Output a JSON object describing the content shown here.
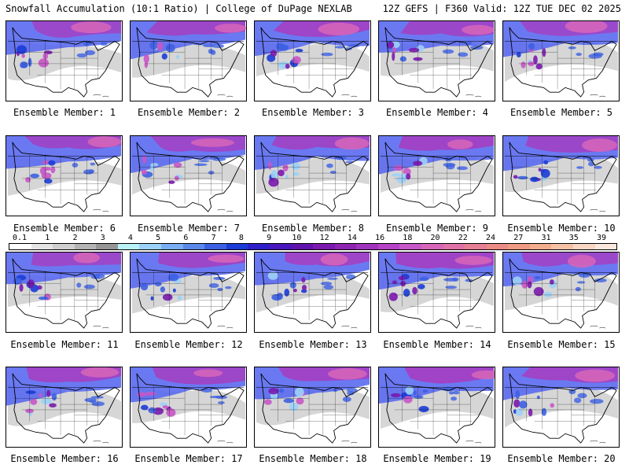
{
  "header": {
    "left": "Snowfall Accumulation (10:1 Ratio) | College of DuPage NEXLAB",
    "right": "12Z GEFS | F360 Valid: 12Z TUE DEC 02 2025"
  },
  "members": [
    {
      "label": "Ensemble Member: 1",
      "intensity": 0.6
    },
    {
      "label": "Ensemble Member: 2",
      "intensity": 0.75
    },
    {
      "label": "Ensemble Member: 3",
      "intensity": 0.8
    },
    {
      "label": "Ensemble Member: 4",
      "intensity": 0.7
    },
    {
      "label": "Ensemble Member: 5",
      "intensity": 0.55
    },
    {
      "label": "Ensemble Member: 6",
      "intensity": 0.7
    },
    {
      "label": "Ensemble Member: 7",
      "intensity": 0.65
    },
    {
      "label": "Ensemble Member: 8",
      "intensity": 0.75
    },
    {
      "label": "Ensemble Member: 9",
      "intensity": 0.85
    },
    {
      "label": "Ensemble Member: 10",
      "intensity": 0.7
    },
    {
      "label": "Ensemble Member: 11",
      "intensity": 0.6
    },
    {
      "label": "Ensemble Member: 12",
      "intensity": 0.75
    },
    {
      "label": "Ensemble Member: 13",
      "intensity": 0.8
    },
    {
      "label": "Ensemble Member: 14",
      "intensity": 0.85
    },
    {
      "label": "Ensemble Member: 15",
      "intensity": 0.65
    },
    {
      "label": "Ensemble Member: 16",
      "intensity": 0.8
    },
    {
      "label": "Ensemble Member: 17",
      "intensity": 0.75
    },
    {
      "label": "Ensemble Member: 18",
      "intensity": 0.85
    },
    {
      "label": "Ensemble Member: 19",
      "intensity": 0.9
    },
    {
      "label": "Ensemble Member: 20",
      "intensity": 0.8
    }
  ],
  "colorbar": {
    "labels": [
      "0.1",
      "1",
      "2",
      "3",
      "4",
      "5",
      "6",
      "7",
      "8",
      "9",
      "10",
      "12",
      "14",
      "16",
      "18",
      "20",
      "22",
      "24",
      "27",
      "31",
      "35",
      "39"
    ],
    "colors": [
      "#ffffff",
      "#e4e4e4",
      "#cfcfcf",
      "#b4b4b4",
      "#969696",
      "#b9f1f7",
      "#9cd2f7",
      "#78aef2",
      "#5a89ea",
      "#3d60e2",
      "#1b3cd6",
      "#2f1fc9",
      "#4a16bd",
      "#6114ad",
      "#7a1aae",
      "#8e25b3",
      "#a034bd",
      "#b544c6",
      "#c857c7",
      "#d766b9",
      "#e072a7",
      "#e67e94",
      "#eb8b85",
      "#ef9a82",
      "#f2ad8e",
      "#f5c2a6",
      "#f8d6c2",
      "#fbe8dd"
    ]
  }
}
